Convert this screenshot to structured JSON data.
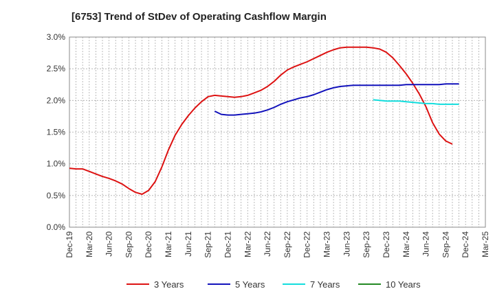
{
  "chart_data": {
    "type": "line",
    "title": "[6753]  Trend of StDev of Operating Cashflow Margin",
    "xlabel": "",
    "ylabel": "",
    "ylim": [
      0,
      3.0
    ],
    "y_ticks": [
      0.0,
      0.5,
      1.0,
      1.5,
      2.0,
      2.5,
      3.0
    ],
    "y_tick_labels": [
      "0.0%",
      "0.5%",
      "1.0%",
      "1.5%",
      "2.0%",
      "2.5%",
      "3.0%"
    ],
    "x_tick_labels": [
      "Dec-19",
      "Mar-20",
      "Jun-20",
      "Sep-20",
      "Dec-20",
      "Mar-21",
      "Jun-21",
      "Sep-21",
      "Dec-21",
      "Mar-22",
      "Jun-22",
      "Sep-22",
      "Dec-22",
      "Mar-23",
      "Jun-23",
      "Sep-23",
      "Dec-23",
      "Mar-24",
      "Jun-24",
      "Sep-24",
      "Dec-24",
      "Mar-25"
    ],
    "grid": true,
    "legend_position": "bottom",
    "series": [
      {
        "name": "3 Years",
        "color": "#dd1111",
        "start_index": 0,
        "values": [
          0.93,
          0.92,
          0.92,
          0.88,
          0.84,
          0.8,
          0.77,
          0.73,
          0.68,
          0.61,
          0.55,
          0.52,
          0.58,
          0.72,
          0.95,
          1.22,
          1.45,
          1.62,
          1.76,
          1.88,
          1.98,
          2.06,
          2.08,
          2.07,
          2.06,
          2.05,
          2.06,
          2.08,
          2.12,
          2.16,
          2.22,
          2.3,
          2.4,
          2.48,
          2.53,
          2.57,
          2.61,
          2.66,
          2.71,
          2.76,
          2.8,
          2.83,
          2.84,
          2.84,
          2.84,
          2.84,
          2.83,
          2.81,
          2.76,
          2.67,
          2.55,
          2.42,
          2.27,
          2.1,
          1.9,
          1.65,
          1.47,
          1.36,
          1.31
        ]
      },
      {
        "name": "5 Years",
        "color": "#1111bb",
        "start_index": 22,
        "values": [
          1.83,
          1.78,
          1.77,
          1.77,
          1.78,
          1.79,
          1.8,
          1.82,
          1.85,
          1.89,
          1.94,
          1.98,
          2.01,
          2.04,
          2.06,
          2.09,
          2.13,
          2.17,
          2.2,
          2.22,
          2.23,
          2.24,
          2.24,
          2.24,
          2.24,
          2.24,
          2.24,
          2.24,
          2.24,
          2.25,
          2.25,
          2.25,
          2.25,
          2.25,
          2.25,
          2.26,
          2.26,
          2.26
        ]
      },
      {
        "name": "7 Years",
        "color": "#11dddd",
        "start_index": 46,
        "values": [
          2.01,
          2.0,
          1.99,
          1.99,
          1.99,
          1.98,
          1.97,
          1.96,
          1.95,
          1.95,
          1.94,
          1.94,
          1.94,
          1.94
        ]
      },
      {
        "name": "10 Years",
        "color": "#228822",
        "start_index": 0,
        "values": []
      }
    ]
  }
}
